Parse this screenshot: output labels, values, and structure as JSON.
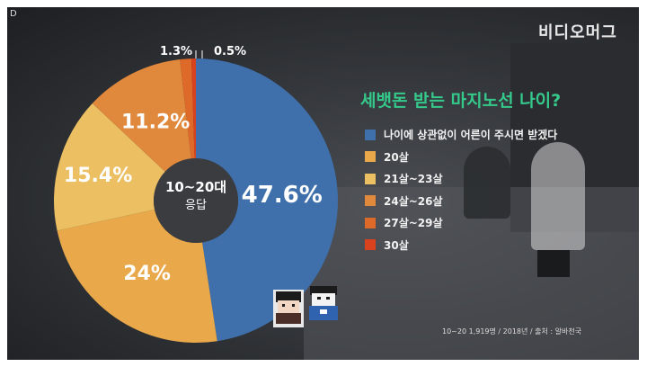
{
  "brand": "비디오머그",
  "corner_mark": "D",
  "source": "10~20 1,919명 / 2018년 / 출처 : 알바천국",
  "colors": {
    "background": "#34373b",
    "title": "#35c98c",
    "text": "#f2f2f2"
  },
  "chart_data": {
    "type": "pie",
    "donut": true,
    "title": "세뱃돈 받는 마지노선 나이?",
    "center_label": {
      "line1": "10~20대",
      "line2": "응답"
    },
    "slices": [
      {
        "label": "나이에 상관없이 어른이 주시면 받겠다",
        "value": 47.6,
        "display": "47.6%",
        "color": "#3f70ab"
      },
      {
        "label": "20살",
        "value": 24,
        "display": "24%",
        "color": "#e9a84a"
      },
      {
        "label": "21살~23살",
        "value": 15.4,
        "display": "15.4%",
        "color": "#ebbf62"
      },
      {
        "label": "24살~26살",
        "value": 11.2,
        "display": "11.2%",
        "color": "#e0883c"
      },
      {
        "label": "27살~29살",
        "value": 1.3,
        "display": "1.3%",
        "color": "#de6a2a"
      },
      {
        "label": "30살",
        "value": 0.5,
        "display": "0.5%",
        "color": "#d9421e"
      }
    ],
    "legend_placement": "right"
  }
}
